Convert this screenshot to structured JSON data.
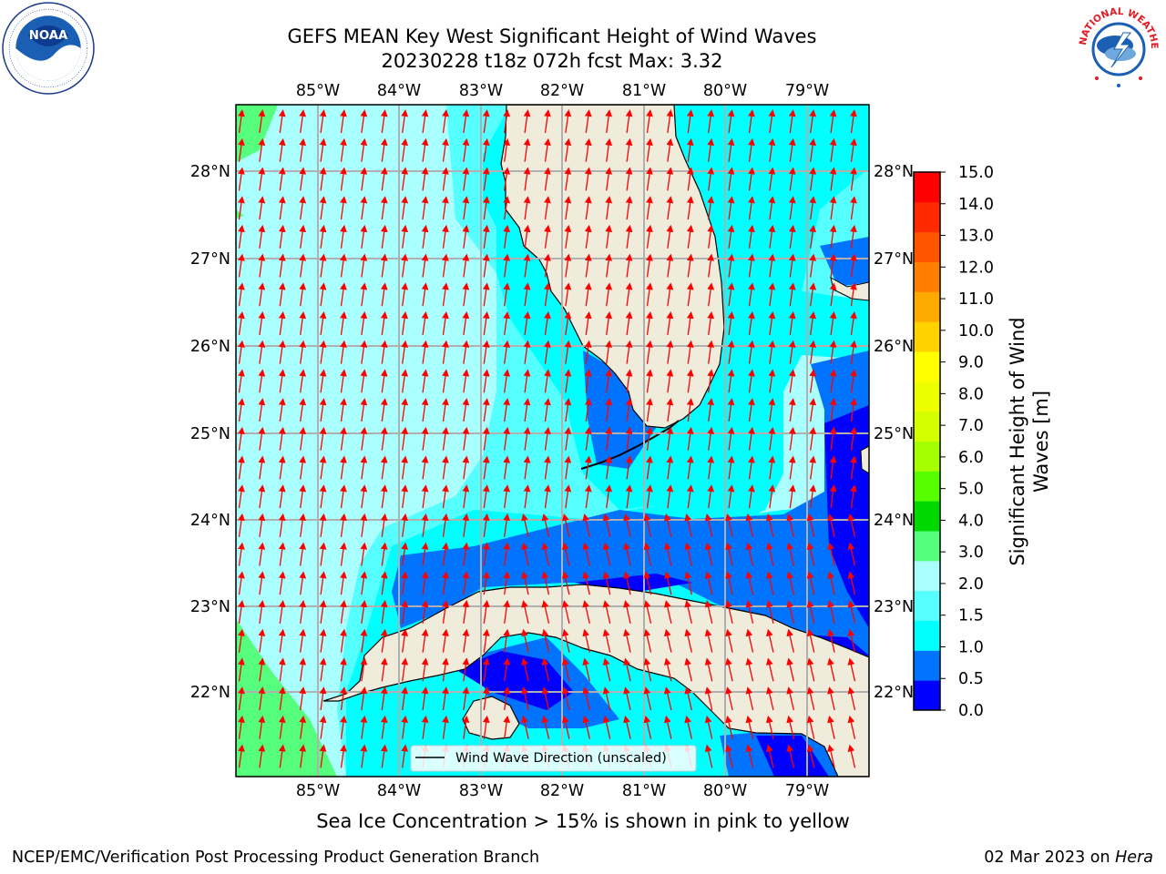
{
  "title": {
    "line1": "GEFS MEAN Key West Significant Height of Wind Waves",
    "line2": "20230228 t18z 072h fcst   Max: 3.32"
  },
  "logos": {
    "left": "noaa-logo",
    "left_text": "NOAA",
    "right": "national-weather-service-logo",
    "right_text": "NATIONAL WEATHER SERVICE"
  },
  "map": {
    "lon_labels": [
      "85°W",
      "84°W",
      "83°W",
      "82°W",
      "81°W",
      "80°W",
      "79°W"
    ],
    "lat_labels": [
      "28°N",
      "27°N",
      "26°N",
      "25°N",
      "24°N",
      "23°N",
      "22°N"
    ],
    "legend_label": "Wind Wave Direction (unscaled)",
    "land_color": "#efecdc",
    "coast_color": "#000000",
    "arrow_color": "#ff0000",
    "grid_color": "#b0b0b0"
  },
  "colorbar": {
    "title_line1": "Significant Height of Wind",
    "title_line2": "Waves [m]",
    "tick_labels": [
      "0.0",
      "0.5",
      "1.0",
      "1.5",
      "2.0",
      "3.0",
      "4.0",
      "5.0",
      "6.0",
      "7.0",
      "8.0",
      "9.0",
      "10.0",
      "11.0",
      "12.0",
      "13.0",
      "14.0",
      "15.0"
    ],
    "colors": [
      "#0000ff",
      "#0073ff",
      "#00ffff",
      "#55ffff",
      "#aaffff",
      "#55ff7d",
      "#00d900",
      "#55ff00",
      "#a6ff00",
      "#d4ff00",
      "#eeff00",
      "#ffff00",
      "#ffd200",
      "#ffaa00",
      "#ff8000",
      "#ff5500",
      "#ff2a00",
      "#ff0000"
    ]
  },
  "note": "Sea Ice Concentration > 15% is shown in pink to yellow",
  "footer": {
    "left": "NCEP/EMC/Verification Post Processing Product Generation Branch",
    "date": "02 Mar 2023 on ",
    "system": "Hera"
  }
}
